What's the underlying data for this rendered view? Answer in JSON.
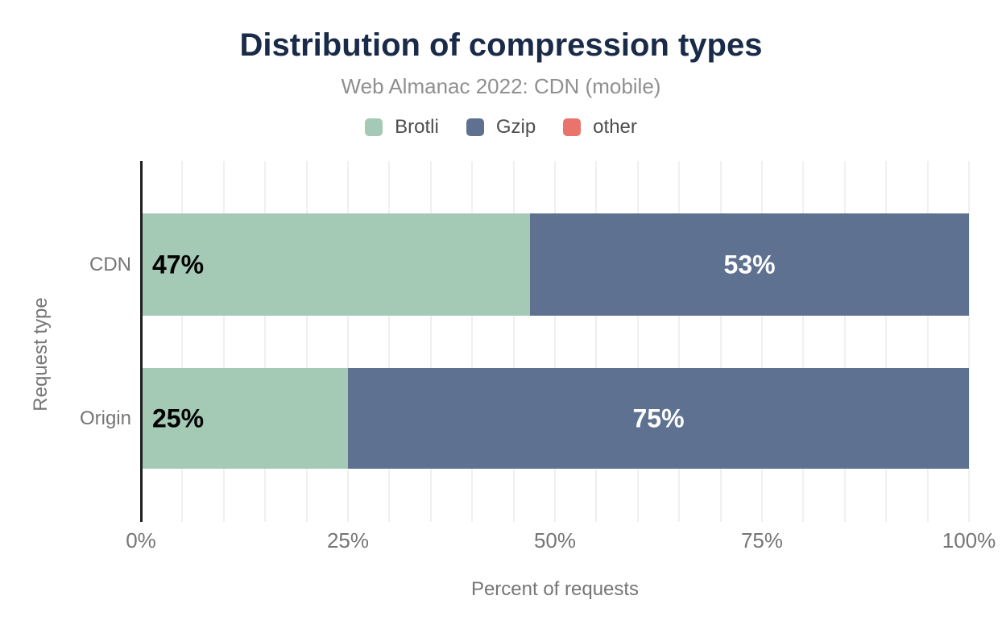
{
  "chart_data": {
    "type": "bar",
    "orientation": "horizontal",
    "stacked": true,
    "title": "Distribution of compression types",
    "subtitle": "Web Almanac 2022: CDN (mobile)",
    "xlabel": "Percent of requests",
    "ylabel": "Request type",
    "categories": [
      "CDN",
      "Origin"
    ],
    "series": [
      {
        "name": "Brotli",
        "color": "#a4c9b5",
        "values": [
          47,
          25
        ],
        "label_style": "inside-left-dark"
      },
      {
        "name": "Gzip",
        "color": "#5f7190",
        "values": [
          53,
          75
        ],
        "label_style": "inside-center-light"
      },
      {
        "name": "other",
        "color": "#ea746b",
        "values": [
          0,
          0
        ],
        "label_style": "none"
      }
    ],
    "value_suffix": "%",
    "xlim": [
      0,
      100
    ],
    "x_ticks": [
      {
        "value": 0,
        "label": "0%"
      },
      {
        "value": 25,
        "label": "25%"
      },
      {
        "value": 50,
        "label": "50%"
      },
      {
        "value": 75,
        "label": "75%"
      },
      {
        "value": 100,
        "label": "100%"
      }
    ],
    "grid": true,
    "grid_step": 5,
    "legend_position": "top"
  },
  "colors": {
    "title_color": "#1a2b49",
    "subtitle_color": "#8f8f8f",
    "legend_text": "#4d4d4d",
    "axis_text": "#757575",
    "gridline": "#f0f0f0",
    "axis_line": "#1f1f1f",
    "bar_label_dark": "#000000",
    "bar_label_light": "#ffffff",
    "page_bg": "#ffffff"
  }
}
